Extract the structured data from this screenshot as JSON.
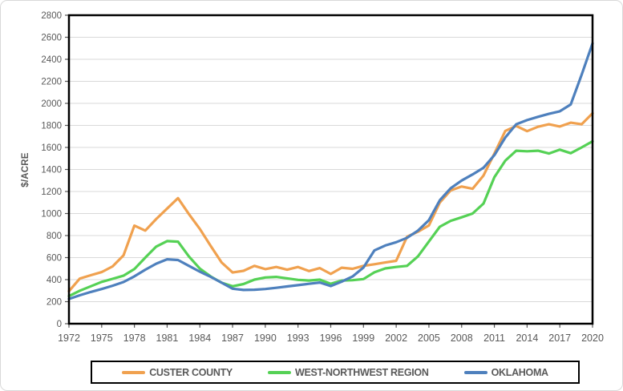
{
  "chart_data": {
    "type": "line",
    "title": "",
    "ylabel": "$/ACRE",
    "ylim": [
      0,
      2800
    ],
    "ytick_step": 200,
    "grid": true,
    "legend_position": "bottom",
    "xtick_years": [
      1972,
      1975,
      1978,
      1981,
      1984,
      1987,
      1990,
      1993,
      1996,
      1999,
      2002,
      2005,
      2008,
      2011,
      2014,
      2017,
      2020
    ],
    "years": [
      1972,
      1973,
      1974,
      1975,
      1976,
      1977,
      1978,
      1979,
      1980,
      1981,
      1982,
      1983,
      1984,
      1985,
      1986,
      1987,
      1988,
      1989,
      1990,
      1991,
      1992,
      1993,
      1994,
      1995,
      1996,
      1997,
      1998,
      1999,
      2000,
      2001,
      2002,
      2003,
      2004,
      2005,
      2006,
      2007,
      2008,
      2009,
      2010,
      2011,
      2012,
      2013,
      2014,
      2015,
      2016,
      2017,
      2018,
      2019,
      2020
    ],
    "series": [
      {
        "name": "CUSTER COUNTY",
        "color": "#F0A14F",
        "values": [
          295,
          410,
          440,
          468,
          520,
          620,
          890,
          845,
          950,
          1045,
          1140,
          995,
          860,
          705,
          555,
          465,
          480,
          525,
          495,
          515,
          490,
          515,
          478,
          505,
          452,
          508,
          498,
          525,
          540,
          556,
          571,
          790,
          835,
          892,
          1100,
          1210,
          1245,
          1225,
          1345,
          1545,
          1750,
          1795,
          1748,
          1788,
          1810,
          1790,
          1825,
          1810,
          1910
        ]
      },
      {
        "name": "WEST-NORTHWEST REGION",
        "color": "#55D155",
        "values": [
          250,
          300,
          340,
          380,
          407,
          436,
          496,
          600,
          700,
          750,
          745,
          610,
          500,
          428,
          372,
          340,
          360,
          400,
          420,
          425,
          412,
          398,
          392,
          400,
          362,
          392,
          395,
          405,
          466,
          502,
          515,
          525,
          612,
          746,
          880,
          934,
          966,
          1000,
          1090,
          1330,
          1480,
          1570,
          1565,
          1570,
          1545,
          1580,
          1548,
          1600,
          1655
        ]
      },
      {
        "name": "OKLAHOMA",
        "color": "#4E80BD",
        "values": [
          225,
          258,
          288,
          315,
          345,
          378,
          430,
          490,
          545,
          585,
          578,
          525,
          472,
          425,
          372,
          318,
          306,
          308,
          315,
          326,
          338,
          350,
          362,
          374,
          342,
          382,
          428,
          510,
          665,
          710,
          740,
          780,
          845,
          940,
          1120,
          1230,
          1300,
          1355,
          1415,
          1530,
          1690,
          1810,
          1848,
          1878,
          1905,
          1928,
          1990,
          2260,
          2545
        ]
      }
    ]
  },
  "colors": {
    "axis_text": "#595959",
    "tick_mark": "#595959",
    "gridline": "#D9D9D9",
    "plot_border": "#000000",
    "legend_border": "#000000",
    "frame_border": "#D9D9D9",
    "background": "#FFFFFF"
  }
}
